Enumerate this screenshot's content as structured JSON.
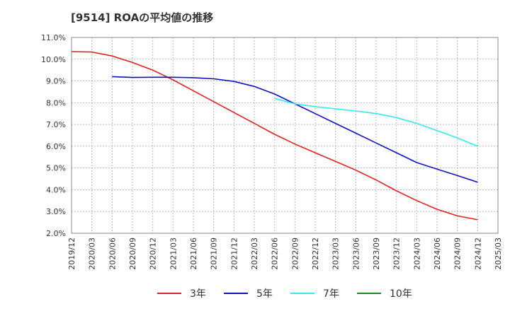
{
  "chart_data": {
    "type": "line",
    "title": "[9514]  ROAの平均値の推移",
    "x_tick_labels": [
      "2019/12",
      "2020/03",
      "2020/06",
      "2020/09",
      "2020/12",
      "2021/03",
      "2021/06",
      "2021/09",
      "2021/12",
      "2022/03",
      "2022/06",
      "2022/09",
      "2022/12",
      "2023/03",
      "2023/06",
      "2023/09",
      "2023/12",
      "2024/03",
      "2024/06",
      "2024/09",
      "2024/12",
      "2025/03"
    ],
    "y_tick_labels": [
      "2.0%",
      "3.0%",
      "4.0%",
      "5.0%",
      "6.0%",
      "7.0%",
      "8.0%",
      "9.0%",
      "10.0%",
      "11.0%"
    ],
    "ylim": [
      2.0,
      11.0
    ],
    "grid": true,
    "legend_position": "bottom",
    "series": [
      {
        "name": "3年",
        "color": "#e02020",
        "start_index": 0,
        "values": [
          10.35,
          10.33,
          10.15,
          9.85,
          9.5,
          9.05,
          8.55,
          8.05,
          7.55,
          7.05,
          6.55,
          6.1,
          5.7,
          5.3,
          4.9,
          4.45,
          3.95,
          3.5,
          3.1,
          2.8,
          2.62
        ]
      },
      {
        "name": "5年",
        "color": "#1010c0",
        "start_index": 2,
        "values": [
          9.2,
          9.16,
          9.17,
          9.17,
          9.15,
          9.1,
          8.98,
          8.75,
          8.4,
          7.95,
          7.5,
          7.05,
          6.6,
          6.15,
          5.7,
          5.25,
          4.95,
          4.65,
          4.35
        ]
      },
      {
        "name": "7年",
        "color": "#33e8f0",
        "start_index": 10,
        "values": [
          8.2,
          7.95,
          7.82,
          7.72,
          7.62,
          7.5,
          7.32,
          7.05,
          6.72,
          6.38,
          6.0
        ]
      },
      {
        "name": "10年",
        "color": "#1a8a1a",
        "start_index": 0,
        "values": []
      }
    ]
  }
}
